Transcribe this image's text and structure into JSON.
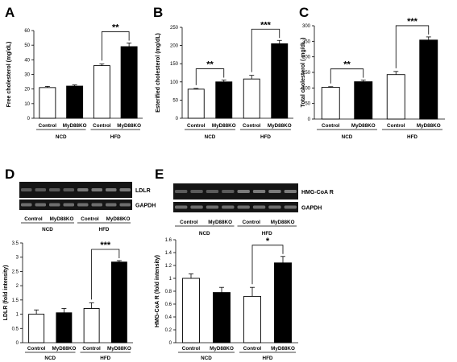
{
  "chart_data": [
    {
      "panel": "A",
      "type": "bar",
      "ylabel": "Free cholesterol (mg/dL)",
      "ylim": [
        0,
        60
      ],
      "yticks": [
        0,
        10,
        20,
        30,
        40,
        50,
        60
      ],
      "categories": [
        "Control",
        "MyD88KO",
        "Control",
        "MyD88KO"
      ],
      "groups": [
        {
          "label": "NCD",
          "span": [
            0,
            1
          ]
        },
        {
          "label": "HFD",
          "span": [
            2,
            3
          ]
        }
      ],
      "values": [
        21,
        22,
        36,
        49
      ],
      "errors": [
        0.8,
        0.8,
        1.2,
        2.5
      ],
      "colors": [
        "white",
        "black",
        "white",
        "black"
      ],
      "significance": [
        {
          "pair": [
            2,
            3
          ],
          "label": "**"
        }
      ]
    },
    {
      "panel": "B",
      "type": "bar",
      "ylabel": "Esterified cholesterol (mg/dL)",
      "ylim": [
        0,
        250
      ],
      "yticks": [
        0,
        50,
        100,
        150,
        200,
        250
      ],
      "categories": [
        "Control",
        "MyD88KO",
        "Control",
        "MyD88KO"
      ],
      "groups": [
        {
          "label": "NCD",
          "span": [
            0,
            1
          ]
        },
        {
          "label": "HFD",
          "span": [
            2,
            3
          ]
        }
      ],
      "values": [
        80,
        100,
        108,
        205
      ],
      "errors": [
        2,
        5,
        10,
        9
      ],
      "colors": [
        "white",
        "black",
        "white",
        "black"
      ],
      "significance": [
        {
          "pair": [
            0,
            1
          ],
          "label": "**"
        },
        {
          "pair": [
            2,
            3
          ],
          "label": "***"
        }
      ]
    },
    {
      "panel": "C",
      "type": "bar",
      "ylabel": "Total cholesterol ( mg/dL )",
      "ylim": [
        0,
        300
      ],
      "yticks": [
        0,
        50,
        100,
        150,
        200,
        250,
        300
      ],
      "categories": [
        "Control",
        "MyD88KO",
        "Control",
        "MyD88KO"
      ],
      "groups": [
        {
          "label": "NCD",
          "span": [
            0,
            1
          ]
        },
        {
          "label": "HFD",
          "span": [
            2,
            3
          ]
        }
      ],
      "values": [
        102,
        120,
        143,
        254
      ],
      "errors": [
        2,
        5,
        10,
        10
      ],
      "colors": [
        "white",
        "black",
        "white",
        "black"
      ],
      "significance": [
        {
          "pair": [
            0,
            1
          ],
          "label": "**"
        },
        {
          "pair": [
            2,
            3
          ],
          "label": "***"
        }
      ]
    },
    {
      "panel": "D",
      "type": "bar",
      "ylabel": "LDLR (fold intensity)",
      "ylim": [
        0,
        3.5
      ],
      "yticks": [
        0,
        0.5,
        1,
        1.5,
        2,
        2.5,
        3,
        3.5
      ],
      "categories": [
        "Control",
        "MyD88KO",
        "Control",
        "MyD88KO"
      ],
      "groups": [
        {
          "label": "NCD",
          "span": [
            0,
            1
          ]
        },
        {
          "label": "HFD",
          "span": [
            2,
            3
          ]
        }
      ],
      "values": [
        1.0,
        1.05,
        1.2,
        2.83
      ],
      "errors": [
        0.15,
        0.15,
        0.2,
        0.05
      ],
      "colors": [
        "white",
        "black",
        "white",
        "black"
      ],
      "significance": [
        {
          "pair": [
            2,
            3
          ],
          "label": "***"
        }
      ],
      "blots": [
        "LDLR",
        "GAPDH"
      ]
    },
    {
      "panel": "E",
      "type": "bar",
      "ylabel": "HMG-CoA R (fold intensity)",
      "ylim": [
        0,
        1.6
      ],
      "yticks": [
        0,
        0.2,
        0.4,
        0.6,
        0.8,
        1,
        1.2,
        1.4,
        1.6
      ],
      "categories": [
        "Control",
        "MyD88KO",
        "Control",
        "MyD88KO"
      ],
      "groups": [
        {
          "label": "NCD",
          "span": [
            0,
            1
          ]
        },
        {
          "label": "HFD",
          "span": [
            2,
            3
          ]
        }
      ],
      "values": [
        1.0,
        0.78,
        0.72,
        1.24
      ],
      "errors": [
        0.07,
        0.08,
        0.14,
        0.1
      ],
      "colors": [
        "white",
        "black",
        "white",
        "black"
      ],
      "significance": [
        {
          "pair": [
            2,
            3
          ],
          "label": "*"
        }
      ],
      "blots": [
        "HMG-CoA R",
        "GAPDH"
      ]
    }
  ]
}
